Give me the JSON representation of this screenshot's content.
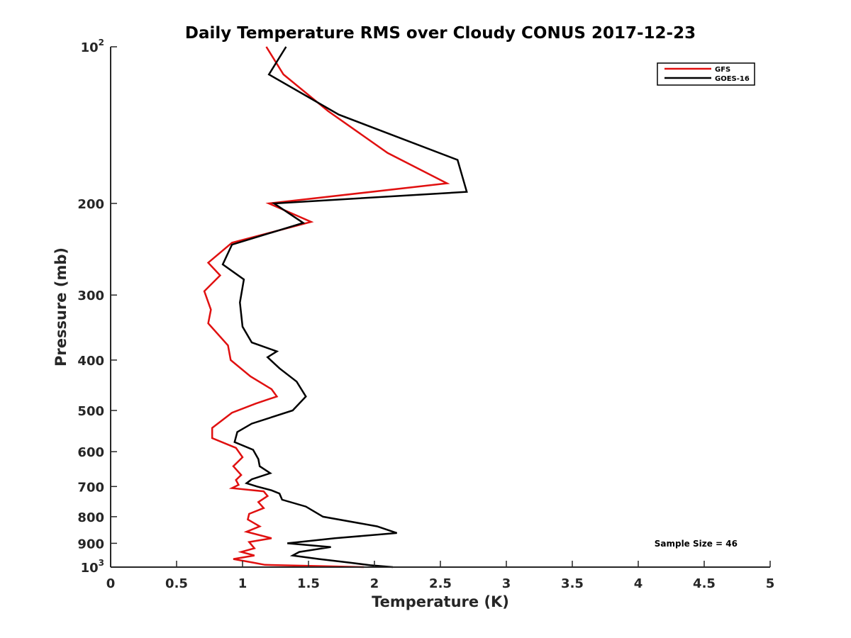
{
  "chart_data": {
    "type": "line",
    "title": "Daily Temperature RMS over Cloudy CONUS 2017-12-23",
    "xlabel": "Temperature (K)",
    "ylabel": "Pressure (mb)",
    "xlim": [
      0,
      5
    ],
    "ylim": [
      100,
      1000
    ],
    "yscale": "log",
    "yreverse": true,
    "grid": false,
    "legend_position": "top-right",
    "xticks": [
      0,
      0.5,
      1,
      1.5,
      2,
      2.5,
      3,
      3.5,
      4,
      4.5,
      5
    ],
    "xtick_labels": [
      "0",
      "0.5",
      "1",
      "1.5",
      "2",
      "2.5",
      "3",
      "3.5",
      "4",
      "4.5",
      "5"
    ],
    "yticks": [
      100,
      200,
      300,
      400,
      500,
      600,
      700,
      800,
      900,
      1000
    ],
    "ytick_labels": [
      {
        "base": "10",
        "sup": "2"
      },
      {
        "base": "200",
        "sup": ""
      },
      {
        "base": "300",
        "sup": ""
      },
      {
        "base": "400",
        "sup": ""
      },
      {
        "base": "500",
        "sup": ""
      },
      {
        "base": "600",
        "sup": ""
      },
      {
        "base": "700",
        "sup": ""
      },
      {
        "base": "800",
        "sup": ""
      },
      {
        "base": "900",
        "sup": ""
      },
      {
        "base": "10",
        "sup": "3"
      }
    ],
    "annotation": "Sample Size = 46",
    "series": [
      {
        "name": "GFS",
        "color": "#e01010",
        "x": [
          1.18,
          1.31,
          1.65,
          2.1,
          2.55,
          1.2,
          1.52,
          0.92,
          0.74,
          0.83,
          0.71,
          0.76,
          0.74,
          0.89,
          0.91,
          1.06,
          1.22,
          1.26,
          1.1,
          0.92,
          0.77,
          0.77,
          0.95,
          1.0,
          0.93,
          0.99,
          0.95,
          0.97,
          0.92,
          1.16,
          1.19,
          1.12,
          1.16,
          1.05,
          1.04,
          1.13,
          1.03,
          1.22,
          1.05,
          1.09,
          0.99,
          1.09,
          0.93,
          1.08,
          1.17,
          1.92
        ],
        "y": [
          100,
          113,
          133,
          160,
          183,
          200,
          217,
          238,
          260,
          275,
          295,
          320,
          340,
          375,
          400,
          430,
          455,
          470,
          485,
          505,
          540,
          565,
          590,
          615,
          640,
          665,
          680,
          695,
          705,
          715,
          730,
          750,
          770,
          790,
          810,
          835,
          855,
          880,
          895,
          920,
          935,
          950,
          965,
          980,
          990,
          1000
        ]
      },
      {
        "name": "GOES-16",
        "color": "#000000",
        "x": [
          1.33,
          1.2,
          1.73,
          2.63,
          2.7,
          1.24,
          1.46,
          0.92,
          0.85,
          1.01,
          0.98,
          1.0,
          1.07,
          1.26,
          1.19,
          1.28,
          1.41,
          1.48,
          1.38,
          1.07,
          0.96,
          0.94,
          1.08,
          1.12,
          1.13,
          1.21,
          1.07,
          1.03,
          1.11,
          1.22,
          1.28,
          1.3,
          1.48,
          1.61,
          2.02,
          2.17,
          1.7,
          1.34,
          1.67,
          1.43,
          1.38,
          1.58,
          1.81,
          1.97,
          2.14
        ],
        "y": [
          100,
          113,
          135,
          165,
          190,
          200,
          218,
          240,
          262,
          280,
          310,
          345,
          370,
          385,
          395,
          415,
          440,
          470,
          500,
          530,
          550,
          575,
          595,
          620,
          640,
          660,
          678,
          690,
          700,
          712,
          722,
          742,
          765,
          800,
          835,
          860,
          880,
          900,
          915,
          935,
          950,
          965,
          980,
          992,
          1000
        ]
      }
    ]
  }
}
